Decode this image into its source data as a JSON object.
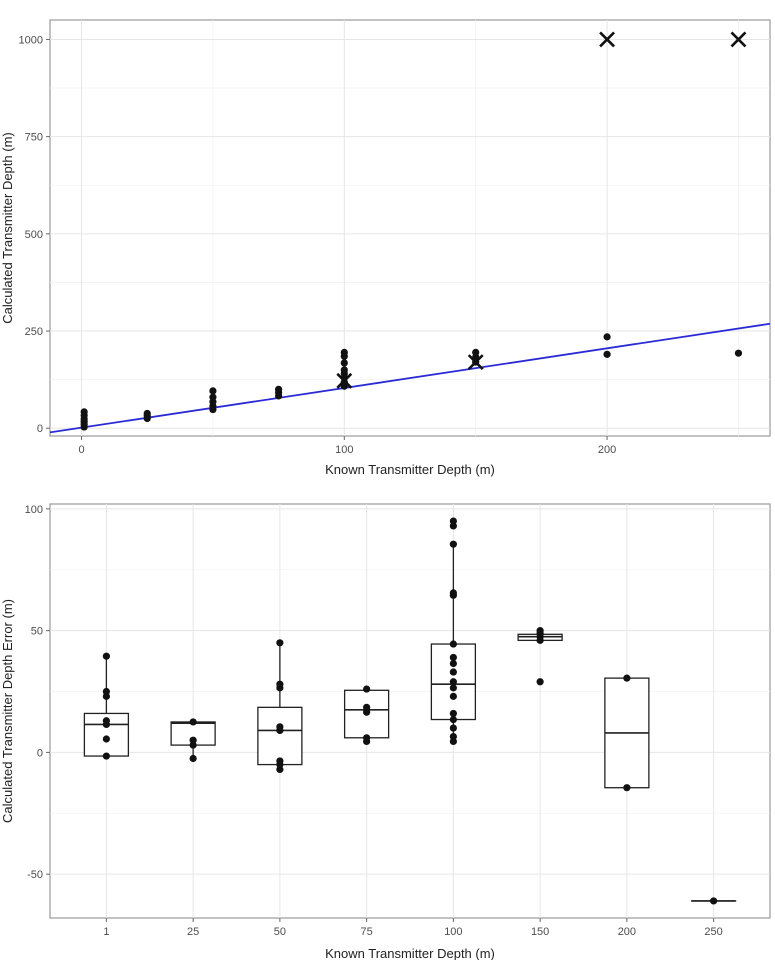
{
  "chart_data": [
    {
      "type": "scatter",
      "xlabel": "Known Transmitter Depth (m)",
      "ylabel": "Calculated Transmitter Depth (m)",
      "xlim": [
        -12,
        262
      ],
      "ylim": [
        -20,
        1050
      ],
      "x_ticks": [
        0,
        100,
        200
      ],
      "y_ticks": [
        0,
        250,
        500,
        750,
        1000
      ],
      "grid": true,
      "points": [
        {
          "x": 1,
          "y": 3
        },
        {
          "x": 1,
          "y": 10
        },
        {
          "x": 1,
          "y": 17
        },
        {
          "x": 1,
          "y": 24
        },
        {
          "x": 1,
          "y": 33
        },
        {
          "x": 1,
          "y": 42
        },
        {
          "x": 25,
          "y": 25
        },
        {
          "x": 25,
          "y": 32
        },
        {
          "x": 25,
          "y": 38
        },
        {
          "x": 50,
          "y": 48
        },
        {
          "x": 50,
          "y": 57
        },
        {
          "x": 50,
          "y": 68
        },
        {
          "x": 50,
          "y": 80
        },
        {
          "x": 50,
          "y": 96
        },
        {
          "x": 75,
          "y": 83
        },
        {
          "x": 75,
          "y": 92
        },
        {
          "x": 75,
          "y": 100
        },
        {
          "x": 100,
          "y": 108
        },
        {
          "x": 100,
          "y": 118
        },
        {
          "x": 100,
          "y": 130
        },
        {
          "x": 100,
          "y": 140
        },
        {
          "x": 100,
          "y": 150
        },
        {
          "x": 100,
          "y": 168
        },
        {
          "x": 100,
          "y": 185
        },
        {
          "x": 100,
          "y": 195
        },
        {
          "x": 150,
          "y": 170
        },
        {
          "x": 150,
          "y": 183
        },
        {
          "x": 150,
          "y": 195
        },
        {
          "x": 200,
          "y": 190
        },
        {
          "x": 200,
          "y": 235
        },
        {
          "x": 250,
          "y": 193
        }
      ],
      "outliers_x": [
        {
          "x": 100,
          "y": 122
        },
        {
          "x": 150,
          "y": 170
        },
        {
          "x": 200,
          "y": 1000
        },
        {
          "x": 250,
          "y": 1000
        }
      ],
      "fit_line": {
        "slope": 1.02,
        "intercept": 1.5,
        "color": "#2b2bd6"
      }
    },
    {
      "type": "box",
      "xlabel": "Known Transmitter Depth (m)",
      "ylabel": "Calculated Transmitter Depth Error (m)",
      "categories": [
        "1",
        "25",
        "50",
        "75",
        "100",
        "150",
        "200",
        "250"
      ],
      "ylim": [
        -68,
        102
      ],
      "y_ticks": [
        -50,
        0,
        50,
        100
      ],
      "grid": true,
      "boxes": [
        {
          "category": "1",
          "min": -1.5,
          "q1": -1.5,
          "median": 11.5,
          "q3": 16,
          "max": 39.5,
          "points": [
            -1.5,
            5.5,
            11.5,
            13,
            23,
            25,
            39.5
          ]
        },
        {
          "category": "25",
          "min": -2.5,
          "q1": 3,
          "median": 12,
          "q3": 12.5,
          "max": 12.5,
          "points": [
            -2.5,
            3,
            5,
            12.5
          ]
        },
        {
          "category": "50",
          "min": -7,
          "q1": -5,
          "median": 9,
          "q3": 18.5,
          "max": 45,
          "points": [
            -7,
            -5,
            -3.5,
            9,
            10.5,
            26.5,
            28,
            45
          ]
        },
        {
          "category": "75",
          "min": 4.5,
          "q1": 6,
          "median": 17.5,
          "q3": 25.5,
          "max": 26,
          "points": [
            4.5,
            6,
            16.5,
            18.5,
            26
          ]
        },
        {
          "category": "100",
          "min": 4.5,
          "q1": 13.5,
          "median": 28,
          "q3": 44.5,
          "max": 85.5,
          "points": [
            4.5,
            6.5,
            10,
            13.5,
            16,
            23,
            26.5,
            29,
            33,
            36.5,
            39,
            44.5,
            64.5,
            65.5,
            85.5,
            93,
            95
          ]
        },
        {
          "category": "150",
          "min": 46,
          "q1": 46,
          "median": 47.5,
          "q3": 48.5,
          "max": 50,
          "points": [
            29,
            46,
            47.5,
            49,
            50
          ]
        },
        {
          "category": "200",
          "min": -14.5,
          "q1": -14.5,
          "median": 8,
          "q3": 30.5,
          "max": 30.5,
          "points": [
            -14.5,
            30.5
          ]
        },
        {
          "category": "250",
          "min": -61,
          "q1": -61,
          "median": -61,
          "q3": -61,
          "max": -61,
          "points": [
            -61
          ]
        }
      ]
    }
  ]
}
